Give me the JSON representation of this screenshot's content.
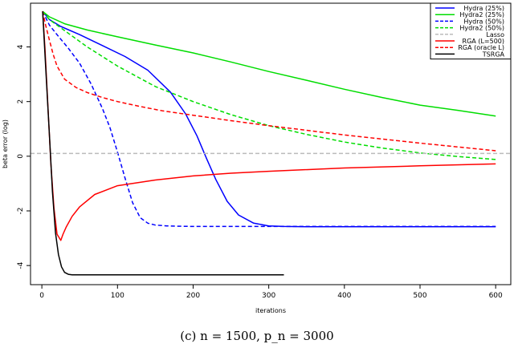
{
  "caption": "(c) n = 1500, p_n = 3000",
  "chart_data": {
    "type": "line",
    "title": "",
    "xlabel": "iterations",
    "ylabel": "beta error (log)",
    "xlim": [
      -15,
      620
    ],
    "ylim": [
      -4.7,
      5.6
    ],
    "xticks": [
      0,
      100,
      200,
      300,
      400,
      500,
      600
    ],
    "yticks": [
      -4,
      -2,
      0,
      2,
      4
    ],
    "legend_position": "top-right",
    "series": [
      {
        "name": "Hydra (25%)",
        "color": "#0000ff",
        "dash": "solid",
        "x": [
          1,
          10,
          25,
          50,
          80,
          110,
          140,
          170,
          190,
          205,
          218,
          230,
          245,
          260,
          280,
          300,
          320,
          350,
          400,
          500,
          600
        ],
        "y": [
          5.3,
          5.0,
          4.75,
          4.45,
          4.05,
          3.65,
          3.15,
          2.35,
          1.55,
          0.75,
          -0.1,
          -0.85,
          -1.65,
          -2.15,
          -2.45,
          -2.55,
          -2.57,
          -2.58,
          -2.58,
          -2.58,
          -2.58
        ]
      },
      {
        "name": "Hydra2 (25%)",
        "color": "#00dd00",
        "dash": "solid",
        "x": [
          1,
          10,
          30,
          60,
          100,
          150,
          200,
          250,
          300,
          350,
          400,
          450,
          500,
          550,
          600
        ],
        "y": [
          5.3,
          5.1,
          4.85,
          4.62,
          4.37,
          4.07,
          3.78,
          3.45,
          3.1,
          2.78,
          2.45,
          2.15,
          1.87,
          1.68,
          1.47
        ]
      },
      {
        "name": "Hydra (50%)",
        "color": "#0000ff",
        "dash": "dash",
        "x": [
          1,
          10,
          20,
          35,
          50,
          65,
          80,
          90,
          100,
          110,
          120,
          130,
          140,
          150,
          165,
          180,
          200,
          250,
          300,
          400,
          500,
          600
        ],
        "y": [
          5.3,
          4.8,
          4.45,
          3.95,
          3.4,
          2.65,
          1.75,
          1.05,
          0.15,
          -0.8,
          -1.7,
          -2.25,
          -2.45,
          -2.52,
          -2.55,
          -2.56,
          -2.57,
          -2.57,
          -2.57,
          -2.57,
          -2.57,
          -2.57
        ]
      },
      {
        "name": "Hydra2 (50%)",
        "color": "#00dd00",
        "dash": "dash",
        "x": [
          1,
          10,
          30,
          60,
          100,
          150,
          200,
          250,
          300,
          350,
          400,
          450,
          500,
          550,
          600
        ],
        "y": [
          5.3,
          5.0,
          4.6,
          4.0,
          3.3,
          2.55,
          2.0,
          1.52,
          1.12,
          0.8,
          0.52,
          0.3,
          0.12,
          -0.01,
          -0.12
        ]
      },
      {
        "name": "Lasso",
        "color": "#bbbbbb",
        "dash": "dash",
        "x": [
          -15,
          620
        ],
        "y": [
          0.1,
          0.1
        ]
      },
      {
        "name": "RGA (L=500)",
        "color": "#ff0000",
        "dash": "solid",
        "x": [
          1,
          4,
          8,
          12,
          16,
          20,
          25,
          28,
          32,
          40,
          50,
          70,
          100,
          150,
          200,
          250,
          300,
          400,
          500,
          600
        ],
        "y": [
          5.3,
          4.0,
          1.8,
          -0.3,
          -1.9,
          -2.85,
          -3.08,
          -2.85,
          -2.6,
          -2.2,
          -1.85,
          -1.4,
          -1.08,
          -0.87,
          -0.72,
          -0.62,
          -0.55,
          -0.43,
          -0.35,
          -0.28
        ]
      },
      {
        "name": "RGA (oracle L)",
        "color": "#ff0000",
        "dash": "dash",
        "x": [
          1,
          5,
          10,
          15,
          20,
          30,
          45,
          60,
          80,
          100,
          130,
          160,
          200,
          250,
          300,
          400,
          500,
          600
        ],
        "y": [
          5.3,
          4.8,
          4.25,
          3.72,
          3.3,
          2.82,
          2.52,
          2.33,
          2.15,
          2.0,
          1.82,
          1.66,
          1.5,
          1.3,
          1.12,
          0.78,
          0.48,
          0.2
        ]
      },
      {
        "name": "TSRGA",
        "color": "#000000",
        "dash": "solid",
        "x": [
          1,
          5,
          10,
          14,
          18,
          22,
          26,
          30,
          35,
          40,
          60,
          100,
          200,
          320
        ],
        "y": [
          5.3,
          3.3,
          0.8,
          -1.3,
          -2.8,
          -3.6,
          -4.05,
          -4.25,
          -4.32,
          -4.34,
          -4.34,
          -4.34,
          -4.34,
          -4.34
        ]
      }
    ]
  }
}
